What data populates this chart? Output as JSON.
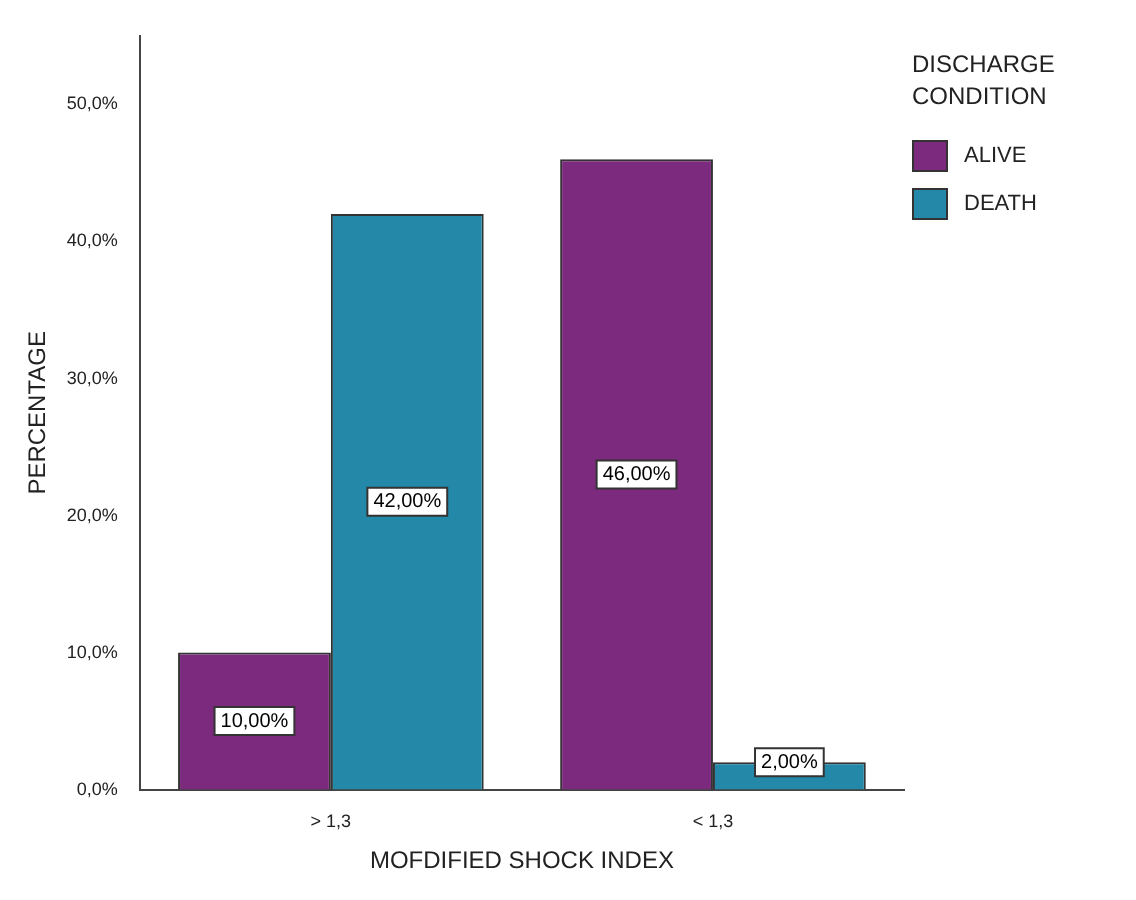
{
  "chart_data": {
    "type": "bar",
    "xlabel": "MOFDIFIED SHOCK INDEX",
    "ylabel": "PERCENTAGE",
    "legend_title": "DISCHARGE CONDITION",
    "categories": [
      "> 1,3",
      "< 1,3"
    ],
    "series": [
      {
        "name": "ALIVE",
        "color": "#7b2a7d",
        "values": [
          10,
          46
        ],
        "value_labels": [
          "10,00%",
          "46,00%"
        ]
      },
      {
        "name": "DEATH",
        "color": "#2489a8",
        "values": [
          42,
          2
        ],
        "value_labels": [
          "42,00%",
          "2,00%"
        ]
      }
    ],
    "ylim": [
      0,
      55
    ],
    "yticks": [
      {
        "value": 0,
        "label": "0,0%"
      },
      {
        "value": 10,
        "label": "10,0%"
      },
      {
        "value": 20,
        "label": "20,0%"
      },
      {
        "value": 30,
        "label": "30,0%"
      },
      {
        "value": 40,
        "label": "40,0%"
      },
      {
        "value": 50,
        "label": "50,0%"
      }
    ],
    "grid": false,
    "legend": "top right"
  }
}
